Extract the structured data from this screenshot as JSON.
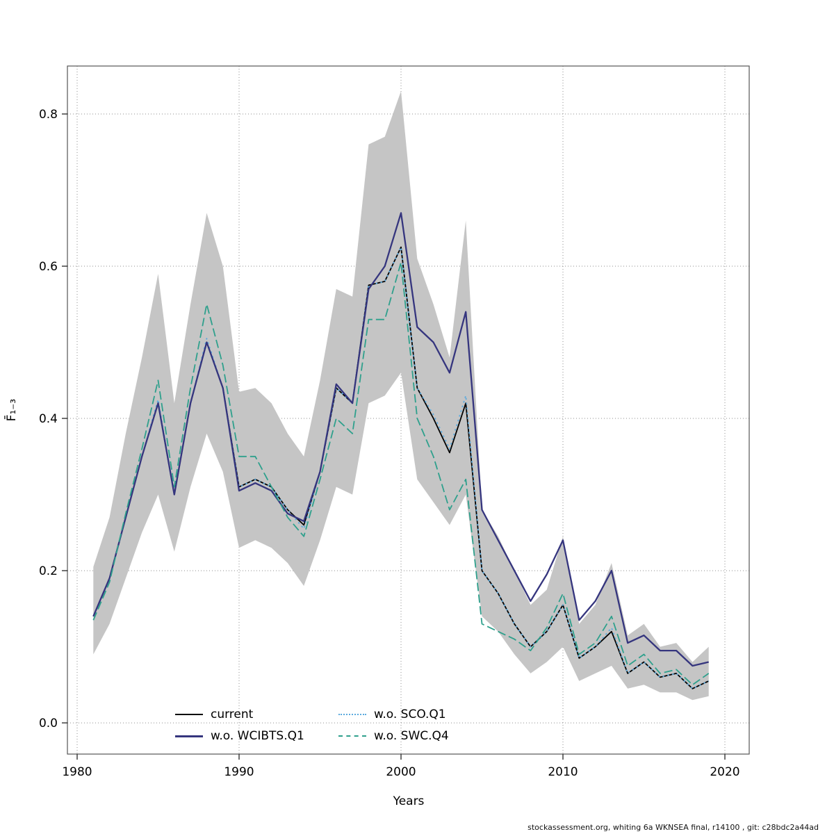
{
  "footer": {
    "text": "stockassessment.org, whiting 6a WKNSEA final, r14100 , git: c28bdc2a44ad"
  },
  "chart_data": {
    "type": "line",
    "title": "",
    "xlabel": "Years",
    "ylabel": "F̄₁₋₃",
    "xlim": [
      1979.4,
      2021.5
    ],
    "ylim": [
      -0.041,
      0.863
    ],
    "xticks": [
      1980,
      1990,
      2000,
      2010,
      2020
    ],
    "yticks": [
      0.0,
      0.2,
      0.4,
      0.6,
      0.8
    ],
    "grid": true,
    "x": [
      1981,
      1982,
      1983,
      1984,
      1985,
      1986,
      1987,
      1988,
      1989,
      1990,
      1991,
      1992,
      1993,
      1994,
      1995,
      1996,
      1997,
      1998,
      1999,
      2000,
      2001,
      2002,
      2003,
      2004,
      2005,
      2006,
      2007,
      2008,
      2009,
      2010,
      2011,
      2012,
      2013,
      2014,
      2015,
      2016,
      2017,
      2018,
      2019
    ],
    "band": {
      "color": "#c5c5c5",
      "lower": [
        0.09,
        0.13,
        0.19,
        0.25,
        0.3,
        0.225,
        0.31,
        0.38,
        0.33,
        0.23,
        0.24,
        0.23,
        0.21,
        0.18,
        0.24,
        0.31,
        0.3,
        0.42,
        0.43,
        0.46,
        0.32,
        0.29,
        0.26,
        0.3,
        0.14,
        0.12,
        0.09,
        0.065,
        0.08,
        0.1,
        0.055,
        0.065,
        0.075,
        0.045,
        0.05,
        0.04,
        0.04,
        0.03,
        0.035
      ],
      "upper": [
        0.205,
        0.27,
        0.38,
        0.48,
        0.59,
        0.42,
        0.55,
        0.67,
        0.6,
        0.435,
        0.44,
        0.42,
        0.38,
        0.35,
        0.45,
        0.57,
        0.56,
        0.76,
        0.77,
        0.83,
        0.61,
        0.55,
        0.48,
        0.66,
        0.28,
        0.245,
        0.2,
        0.155,
        0.175,
        0.245,
        0.13,
        0.155,
        0.21,
        0.115,
        0.13,
        0.1,
        0.105,
        0.08,
        0.1
      ]
    },
    "series": [
      {
        "name": "current",
        "color": "#000000",
        "linestyle": "solid",
        "width": 1.8,
        "values": [
          0.14,
          0.19,
          0.27,
          0.35,
          0.42,
          0.3,
          0.42,
          0.5,
          0.44,
          0.31,
          0.32,
          0.31,
          0.28,
          0.26,
          0.33,
          0.44,
          0.42,
          0.575,
          0.58,
          0.625,
          0.44,
          0.4,
          0.355,
          0.42,
          0.2,
          0.17,
          0.13,
          0.1,
          0.12,
          0.155,
          0.085,
          0.1,
          0.12,
          0.065,
          0.08,
          0.06,
          0.065,
          0.045,
          0.055
        ]
      },
      {
        "name": "w.o. WCIBTS.Q1",
        "color": "#35357e",
        "linestyle": "solid",
        "width": 2.3,
        "values": [
          0.14,
          0.19,
          0.27,
          0.35,
          0.42,
          0.3,
          0.42,
          0.5,
          0.44,
          0.305,
          0.315,
          0.305,
          0.275,
          0.265,
          0.33,
          0.445,
          0.42,
          0.57,
          0.6,
          0.67,
          0.52,
          0.5,
          0.46,
          0.54,
          0.28,
          0.24,
          0.2,
          0.16,
          0.195,
          0.24,
          0.135,
          0.16,
          0.2,
          0.105,
          0.115,
          0.095,
          0.095,
          0.075,
          0.08
        ]
      },
      {
        "name": "w.o. SCO.Q1",
        "color": "#5baade",
        "linestyle": "dotted",
        "width": 1.8,
        "values": [
          0.14,
          0.19,
          0.27,
          0.35,
          0.425,
          0.3,
          0.42,
          0.505,
          0.44,
          0.31,
          0.32,
          0.31,
          0.28,
          0.255,
          0.33,
          0.44,
          0.42,
          0.575,
          0.58,
          0.625,
          0.44,
          0.405,
          0.36,
          0.43,
          0.2,
          0.17,
          0.13,
          0.1,
          0.12,
          0.155,
          0.085,
          0.1,
          0.125,
          0.065,
          0.08,
          0.06,
          0.065,
          0.045,
          0.055
        ]
      },
      {
        "name": "w.o. SWC.Q4",
        "color": "#2ea08c",
        "linestyle": "dashed",
        "width": 1.8,
        "values": [
          0.135,
          0.185,
          0.275,
          0.36,
          0.45,
          0.31,
          0.44,
          0.55,
          0.47,
          0.35,
          0.35,
          0.31,
          0.27,
          0.245,
          0.32,
          0.4,
          0.38,
          0.53,
          0.53,
          0.605,
          0.4,
          0.35,
          0.28,
          0.32,
          0.13,
          0.12,
          0.11,
          0.095,
          0.125,
          0.17,
          0.09,
          0.105,
          0.14,
          0.075,
          0.09,
          0.065,
          0.07,
          0.05,
          0.065
        ]
      }
    ],
    "legend": {
      "position": "bottom-center-inside",
      "columns": 2,
      "items": [
        {
          "label": "current",
          "series": 0
        },
        {
          "label": "w.o. SCO.Q1",
          "series": 2
        },
        {
          "label": "w.o. WCIBTS.Q1",
          "series": 1
        },
        {
          "label": "w.o. SWC.Q4",
          "series": 3
        }
      ]
    }
  }
}
